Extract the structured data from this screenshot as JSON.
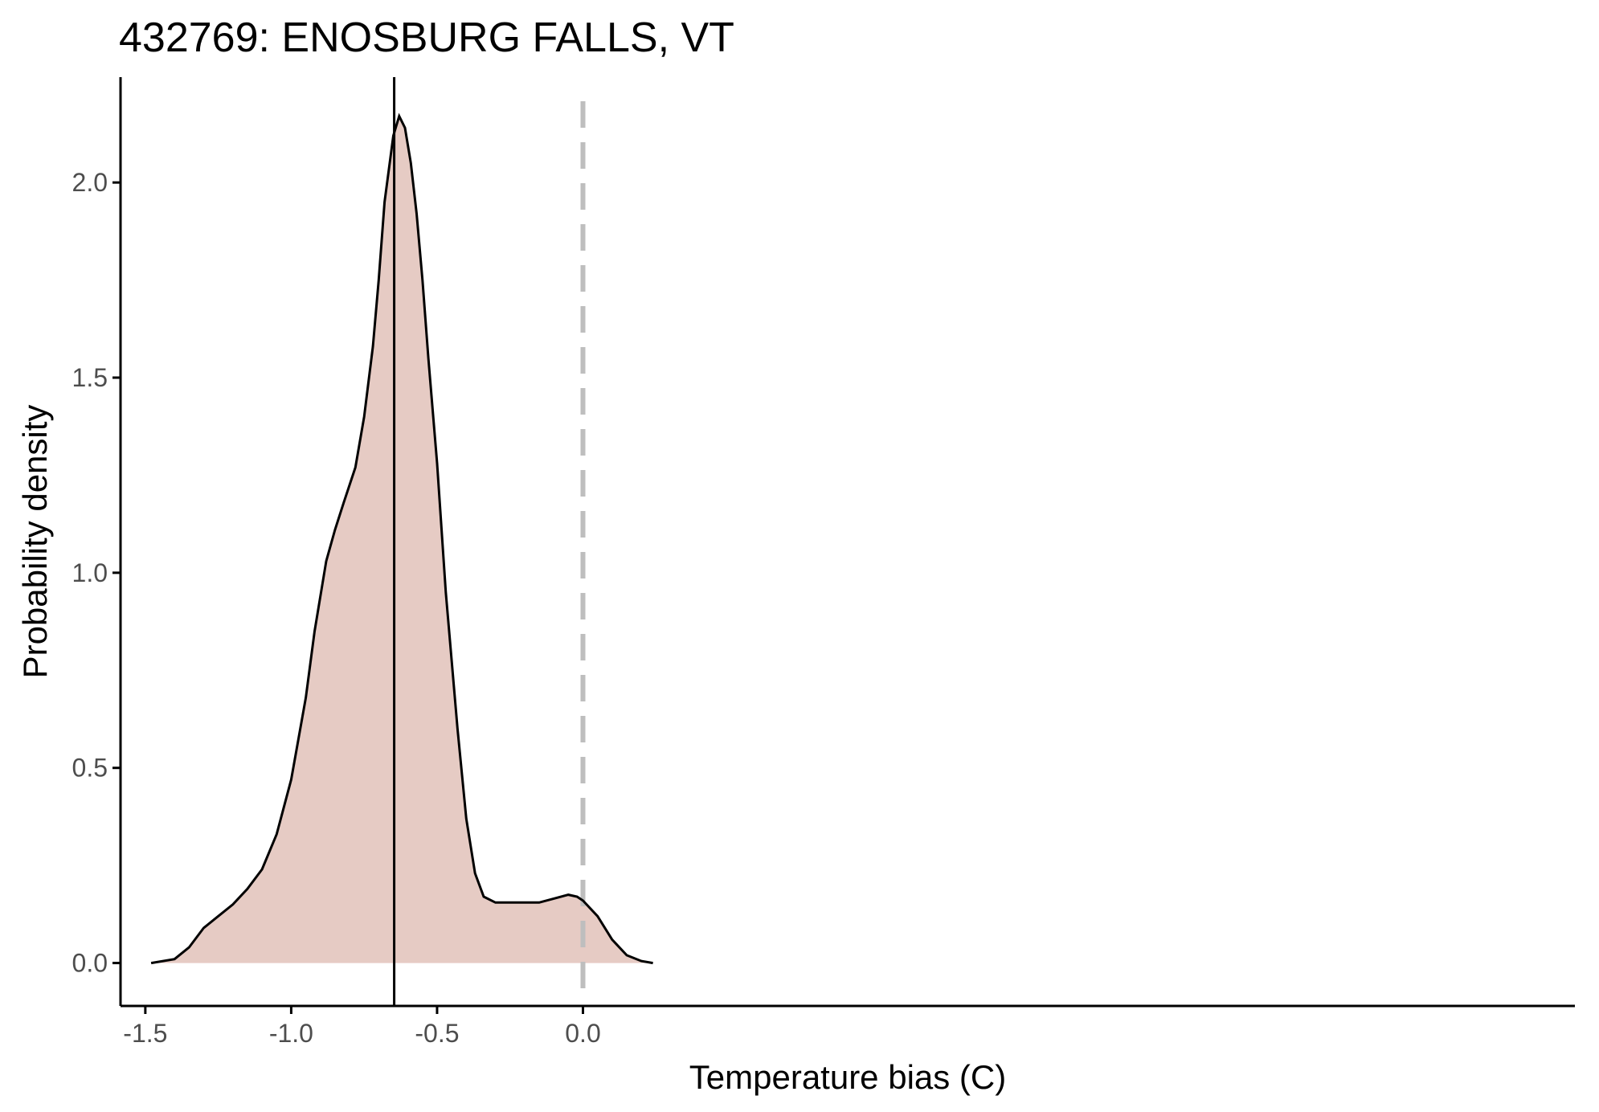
{
  "chart_data": {
    "type": "area",
    "title": "432769: ENOSBURG FALLS, VT",
    "xlabel": "Temperature bias (C)",
    "ylabel": "Probability density",
    "xlim": [
      -1.585,
      3.4
    ],
    "ylim": [
      -0.11,
      2.27
    ],
    "x_ticks": [
      -1.5,
      -1.0,
      -0.5,
      0.0
    ],
    "x_tick_labels": [
      "-1.5",
      "-1.0",
      "-0.5",
      "0.0"
    ],
    "y_ticks": [
      0.0,
      0.5,
      1.0,
      1.5,
      2.0
    ],
    "y_tick_labels": [
      "0.0",
      "0.5",
      "1.0",
      "1.5",
      "2.0"
    ],
    "grid": false,
    "fill_color": "#e6cbc4",
    "line_color": "#000000",
    "density": {
      "x": [
        -1.48,
        -1.4,
        -1.35,
        -1.3,
        -1.25,
        -1.2,
        -1.15,
        -1.1,
        -1.05,
        -1.0,
        -0.95,
        -0.92,
        -0.88,
        -0.85,
        -0.82,
        -0.78,
        -0.75,
        -0.72,
        -0.7,
        -0.68,
        -0.65,
        -0.63,
        -0.61,
        -0.59,
        -0.57,
        -0.55,
        -0.53,
        -0.5,
        -0.47,
        -0.43,
        -0.4,
        -0.37,
        -0.34,
        -0.3,
        -0.25,
        -0.2,
        -0.15,
        -0.1,
        -0.05,
        -0.02,
        0.0,
        0.05,
        0.1,
        0.15,
        0.2,
        0.24
      ],
      "y": [
        0.0,
        0.01,
        0.04,
        0.09,
        0.12,
        0.15,
        0.19,
        0.24,
        0.33,
        0.47,
        0.68,
        0.85,
        1.03,
        1.11,
        1.18,
        1.27,
        1.4,
        1.58,
        1.75,
        1.95,
        2.12,
        2.17,
        2.14,
        2.05,
        1.92,
        1.75,
        1.55,
        1.28,
        0.95,
        0.6,
        0.37,
        0.23,
        0.17,
        0.155,
        0.155,
        0.155,
        0.155,
        0.165,
        0.175,
        0.17,
        0.16,
        0.12,
        0.06,
        0.02,
        0.005,
        0.0
      ]
    },
    "mean_line": {
      "x": -0.647,
      "style": "solid",
      "color": "#000000"
    },
    "reference_line": {
      "x": 0.0,
      "style": "dashed",
      "color": "#bebebe"
    }
  }
}
